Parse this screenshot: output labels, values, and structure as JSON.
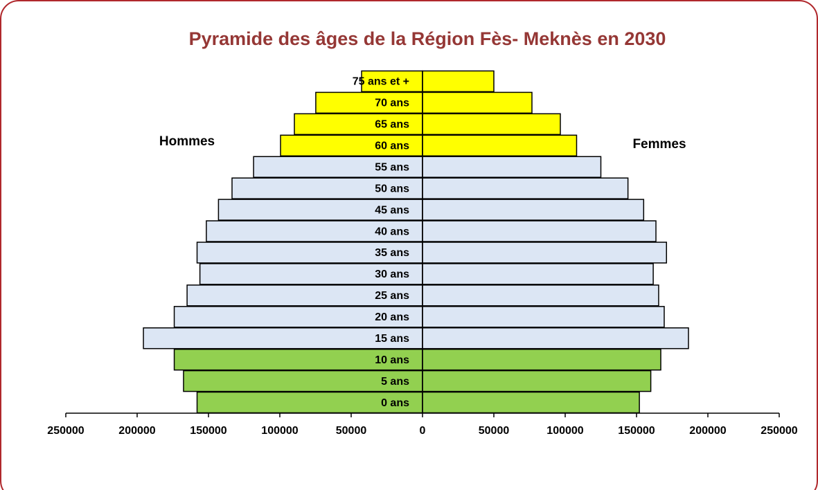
{
  "chart_data": {
    "type": "pyramid",
    "title": "Pyramide des âges de la Région Fès- Meknès en 2030",
    "categories": [
      "0 ans",
      "5 ans",
      "10 ans",
      "15 ans",
      "20 ans",
      "25 ans",
      "30 ans",
      "35 ans",
      "40 ans",
      "45 ans",
      "50 ans",
      "55 ans",
      "60 ans",
      "65 ans",
      "70 ans",
      "75 ans et +"
    ],
    "colors": [
      "#92d050",
      "#92d050",
      "#92d050",
      "#dce6f4",
      "#dce6f4",
      "#dce6f4",
      "#dce6f4",
      "#dce6f4",
      "#dce6f4",
      "#dce6f4",
      "#dce6f4",
      "#dce6f4",
      "#ffff00",
      "#ffff00",
      "#ffff00",
      "#ffff00"
    ],
    "series": [
      {
        "name": "Hommes",
        "values": [
          -158000,
          -167500,
          -174000,
          -195600,
          -174000,
          -165000,
          -156000,
          -158000,
          -151500,
          -143000,
          -133500,
          -118400,
          -99500,
          -89800,
          -74800,
          -42700
        ]
      },
      {
        "name": "Femmes",
        "values": [
          152000,
          160000,
          167000,
          186400,
          169400,
          165500,
          161700,
          171000,
          163600,
          155000,
          144000,
          125000,
          108000,
          96600,
          76700,
          50000
        ]
      }
    ],
    "xlim": [
      -250000,
      250000
    ],
    "xticks": [
      {
        "value": -250000,
        "label": "250000"
      },
      {
        "value": -200000,
        "label": "200000"
      },
      {
        "value": -150000,
        "label": "150000"
      },
      {
        "value": -100000,
        "label": "100000"
      },
      {
        "value": -50000,
        "label": "50000"
      },
      0,
      50000,
      100000,
      150000,
      200000,
      250000
    ]
  }
}
